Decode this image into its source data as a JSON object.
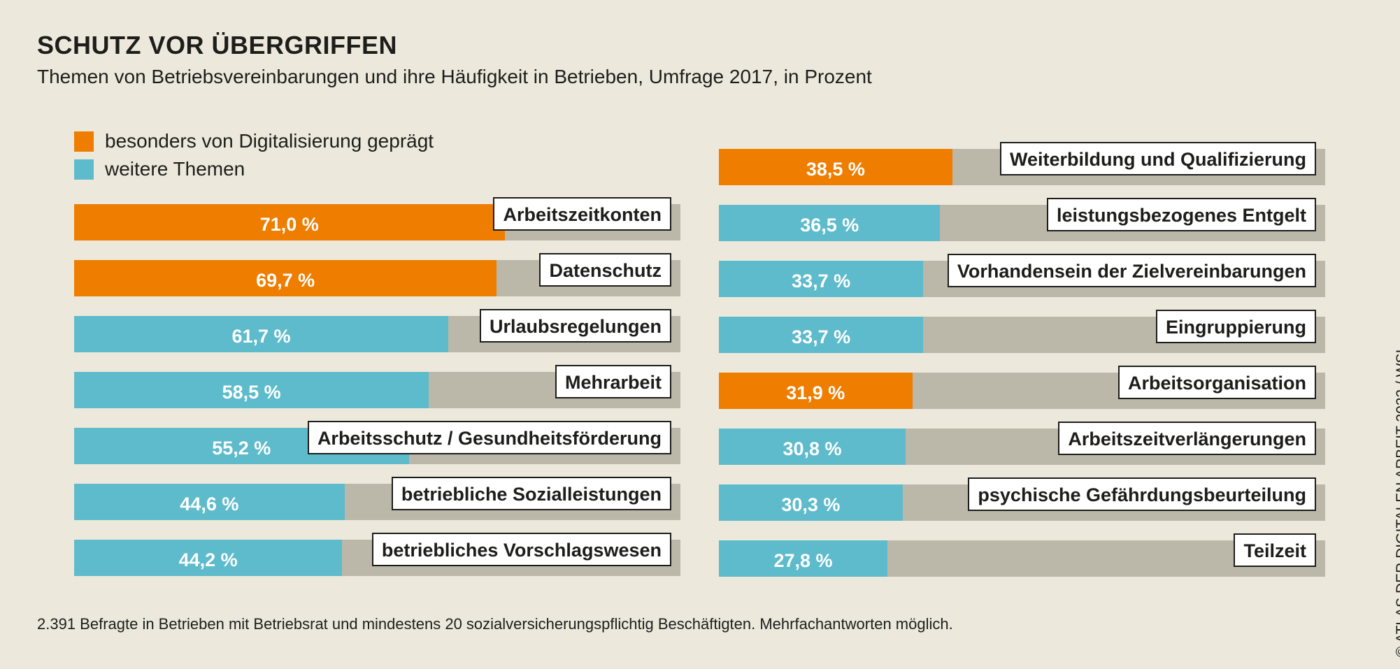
{
  "title": "SCHUTZ VOR ÜBERGRIFFEN",
  "subtitle": "Themen von Betriebsvereinbarungen und ihre Häufigkeit in Betrieben, Umfrage 2017, in Prozent",
  "legend": [
    {
      "label": "besonders von Digitalisierung geprägt",
      "color": "#EE7D00"
    },
    {
      "label": "weitere Themen",
      "color": "#5EBBCB"
    }
  ],
  "footnote": "2.391 Befragte in Betrieben mit Betriebsrat und mindestens 20 sozialversicherungspflichtig Beschäftigten. Mehrfachantworten möglich.",
  "credit": "© ATLAS DER DIGITALEN ARBEIT 2022 / WSI",
  "chart_data": {
    "type": "bar",
    "orientation": "horizontal",
    "xlim": [
      0,
      100
    ],
    "track_color": "#BBB8AA",
    "columns": [
      {
        "bars": [
          {
            "label": "Arbeitszeitkonten",
            "value": 71.0,
            "display": "71,0 %",
            "category": "digital"
          },
          {
            "label": "Datenschutz",
            "value": 69.7,
            "display": "69,7 %",
            "category": "digital"
          },
          {
            "label": "Urlaubsregelungen",
            "value": 61.7,
            "display": "61,7 %",
            "category": "other"
          },
          {
            "label": "Mehrarbeit",
            "value": 58.5,
            "display": "58,5 %",
            "category": "other"
          },
          {
            "label": "Arbeitsschutz / Gesundheitsförderung",
            "value": 55.2,
            "display": "55,2 %",
            "category": "other"
          },
          {
            "label": "betriebliche Sozialleistungen",
            "value": 44.6,
            "display": "44,6 %",
            "category": "other"
          },
          {
            "label": "betriebliches Vorschlagswesen",
            "value": 44.2,
            "display": "44,2 %",
            "category": "other"
          }
        ]
      },
      {
        "bars": [
          {
            "label": "Weiterbildung und Qualifizierung",
            "value": 38.5,
            "display": "38,5 %",
            "category": "digital"
          },
          {
            "label": "leistungsbezogenes Entgelt",
            "value": 36.5,
            "display": "36,5 %",
            "category": "other"
          },
          {
            "label": "Vorhandensein der Zielvereinbarungen",
            "value": 33.7,
            "display": "33,7 %",
            "category": "other"
          },
          {
            "label": "Eingruppierung",
            "value": 33.7,
            "display": "33,7 %",
            "category": "other"
          },
          {
            "label": "Arbeitsorganisation",
            "value": 31.9,
            "display": "31,9 %",
            "category": "digital"
          },
          {
            "label": "Arbeitszeitverlängerungen",
            "value": 30.8,
            "display": "30,8 %",
            "category": "other"
          },
          {
            "label": "psychische Gefährdungsbeurteilung",
            "value": 30.3,
            "display": "30,3 %",
            "category": "other"
          },
          {
            "label": "Teilzeit",
            "value": 27.8,
            "display": "27,8 %",
            "category": "other"
          }
        ]
      }
    ],
    "colors": {
      "digital": "#EE7D00",
      "other": "#5EBBCB"
    }
  }
}
